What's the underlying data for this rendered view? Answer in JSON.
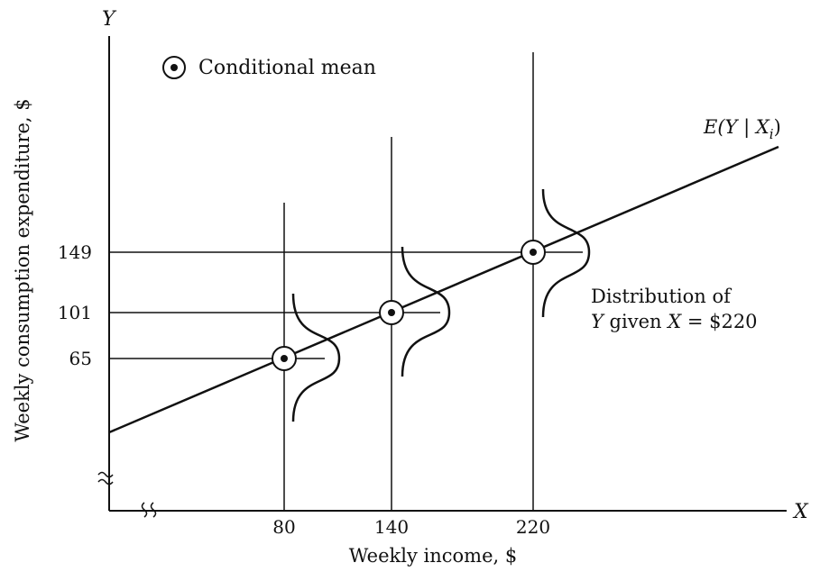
{
  "chart_data": {
    "type": "line",
    "title": "",
    "xlabel": "Weekly income, $",
    "ylabel": "Weekly consumption expenditure, $",
    "x_axis_letter": "X",
    "y_axis_letter": "Y",
    "x_ticks": [
      "80",
      "140",
      "220"
    ],
    "y_ticks": [
      "65",
      "101",
      "149"
    ],
    "x_axis_break": true,
    "y_axis_break": true,
    "points": [
      {
        "x": 80,
        "y": 65
      },
      {
        "x": 140,
        "y": 101
      },
      {
        "x": 220,
        "y": 149
      }
    ],
    "regression_line_label": {
      "prefix": "E(Y",
      "bar": " | ",
      "var": "X",
      "sub": "i",
      "suffix": ")"
    },
    "legend": {
      "marker": "circled-dot",
      "label": "Conditional mean",
      "placement": "top-left"
    },
    "annotation": {
      "line1": "Distribution of",
      "line2_y": "Y",
      "line2_given": " given ",
      "line2_x": "X",
      "line2_value": " = $220"
    },
    "grid": false
  }
}
